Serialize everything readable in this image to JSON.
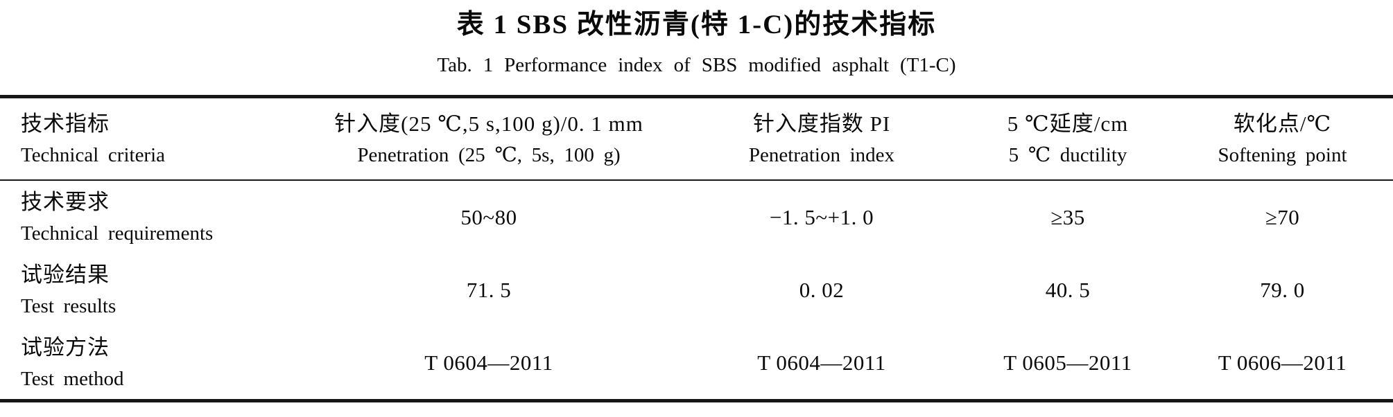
{
  "table": {
    "title_zh": "表 1  SBS 改性沥青(特 1-C)的技术指标",
    "title_en": "Tab. 1 Performance index of SBS modified asphalt (T1-C)",
    "columns": [
      {
        "zh": "技术指标",
        "en": "Technical criteria"
      },
      {
        "zh": "针入度(25 ℃,5 s,100 g)/0. 1 mm",
        "en": "Penetration (25 ℃, 5s, 100 g)"
      },
      {
        "zh": "针入度指数 PI",
        "en": "Penetration index"
      },
      {
        "zh": "5 ℃延度/cm",
        "en": "5 ℃ ductility"
      },
      {
        "zh": "软化点/℃",
        "en": "Softening point"
      }
    ],
    "rows": [
      {
        "label_zh": "技术要求",
        "label_en": "Technical requirements",
        "values": [
          "50~80",
          "−1. 5~+1. 0",
          "≥35",
          "≥70"
        ]
      },
      {
        "label_zh": "试验结果",
        "label_en": "Test results",
        "values": [
          "71. 5",
          "0. 02",
          "40. 5",
          "79. 0"
        ]
      },
      {
        "label_zh": "试验方法",
        "label_en": "Test method",
        "values": [
          "T 0604—2011",
          "T 0604—2011",
          "T 0605—2011",
          "T 0606—2011"
        ]
      }
    ]
  }
}
